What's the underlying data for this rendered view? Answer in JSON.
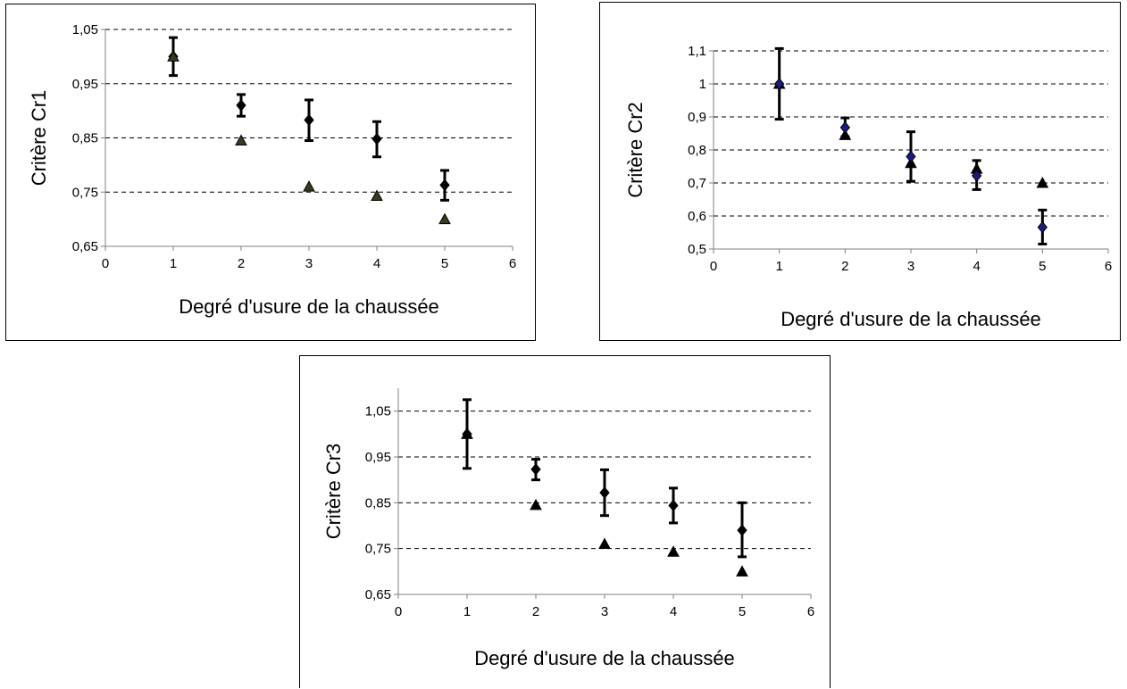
{
  "chart_data": [
    {
      "type": "scatter",
      "title": "",
      "xlabel": "Degré d'usure de la chaussée",
      "ylabel": "Critère Cr1",
      "xlim": [
        0,
        6
      ],
      "ylim": [
        0.65,
        1.05
      ],
      "xticks": [
        0,
        1,
        2,
        3,
        4,
        5,
        6
      ],
      "xtick_labels": [
        "0",
        "1",
        "2",
        "3",
        "4",
        "5",
        "6"
      ],
      "yticks": [
        0.65,
        0.75,
        0.85,
        0.95,
        1.05
      ],
      "ytick_labels": [
        "0,65",
        "0,75",
        "0,85",
        "0,95",
        "1,05"
      ],
      "grid": "horizontal dashed",
      "series": [
        {
          "marker": "diamond",
          "color": "#000000",
          "x": [
            1,
            2,
            3,
            4,
            5
          ],
          "y": [
            1.0,
            0.91,
            0.883,
            0.848,
            0.763
          ],
          "err_low": [
            0.965,
            0.89,
            0.845,
            0.815,
            0.735
          ],
          "err_high": [
            1.035,
            0.93,
            0.92,
            0.88,
            0.79
          ]
        },
        {
          "marker": "triangle",
          "color": "#000000",
          "fill": "#3a3a1a",
          "x": [
            1,
            2,
            3,
            4,
            5
          ],
          "y": [
            1.0,
            0.845,
            0.76,
            0.743,
            0.7
          ]
        }
      ]
    },
    {
      "type": "scatter",
      "title": "",
      "xlabel": "Degré d'usure de la chaussée",
      "ylabel": "Critère Cr2",
      "xlim": [
        0,
        6
      ],
      "ylim": [
        0.5,
        1.1
      ],
      "xticks": [
        0,
        1,
        2,
        3,
        4,
        5,
        6
      ],
      "xtick_labels": [
        "0",
        "1",
        "2",
        "3",
        "4",
        "5",
        "6"
      ],
      "yticks": [
        0.5,
        0.6,
        0.7,
        0.8,
        0.9,
        1.0,
        1.1
      ],
      "ytick_labels": [
        "0,5",
        "0,6",
        "0,7",
        "0,8",
        "0,9",
        "1",
        "1,1"
      ],
      "grid": "horizontal dashed",
      "series": [
        {
          "marker": "triangle",
          "color": "#000000",
          "fill": "#000000",
          "x": [
            1,
            2,
            3,
            4,
            5
          ],
          "y": [
            1.0,
            0.845,
            0.76,
            0.743,
            0.7
          ]
        },
        {
          "marker": "diamond",
          "color": "#1a1a8c",
          "x": [
            1,
            2,
            3,
            4,
            5
          ],
          "y": [
            1.0,
            0.868,
            0.78,
            0.722,
            0.566
          ],
          "err_low": [
            0.893,
            0.84,
            0.705,
            0.68,
            0.515
          ],
          "err_high": [
            1.107,
            0.897,
            0.855,
            0.768,
            0.618
          ]
        }
      ]
    },
    {
      "type": "scatter",
      "title": "",
      "xlabel": "Degré d'usure de la chaussée",
      "ylabel": "Critère Cr3",
      "xlim": [
        0,
        6
      ],
      "ylim": [
        0.65,
        1.1
      ],
      "xticks": [
        0,
        1,
        2,
        3,
        4,
        5,
        6
      ],
      "xtick_labels": [
        "0",
        "1",
        "2",
        "3",
        "4",
        "5",
        "6"
      ],
      "yticks": [
        0.65,
        0.75,
        0.85,
        0.95,
        1.05
      ],
      "ytick_labels": [
        "0,65",
        "0,75",
        "0,85",
        "0,95",
        "1,05"
      ],
      "grid": "horizontal dashed",
      "series": [
        {
          "marker": "diamond",
          "color": "#000000",
          "x": [
            1,
            2,
            3,
            4,
            5
          ],
          "y": [
            1.0,
            0.923,
            0.872,
            0.844,
            0.79
          ],
          "err_low": [
            0.925,
            0.9,
            0.822,
            0.806,
            0.732
          ],
          "err_high": [
            1.075,
            0.945,
            0.922,
            0.882,
            0.85
          ]
        },
        {
          "marker": "triangle",
          "color": "#000000",
          "fill": "#000000",
          "x": [
            1,
            2,
            3,
            4,
            5
          ],
          "y": [
            1.0,
            0.845,
            0.76,
            0.743,
            0.7
          ]
        }
      ]
    }
  ]
}
